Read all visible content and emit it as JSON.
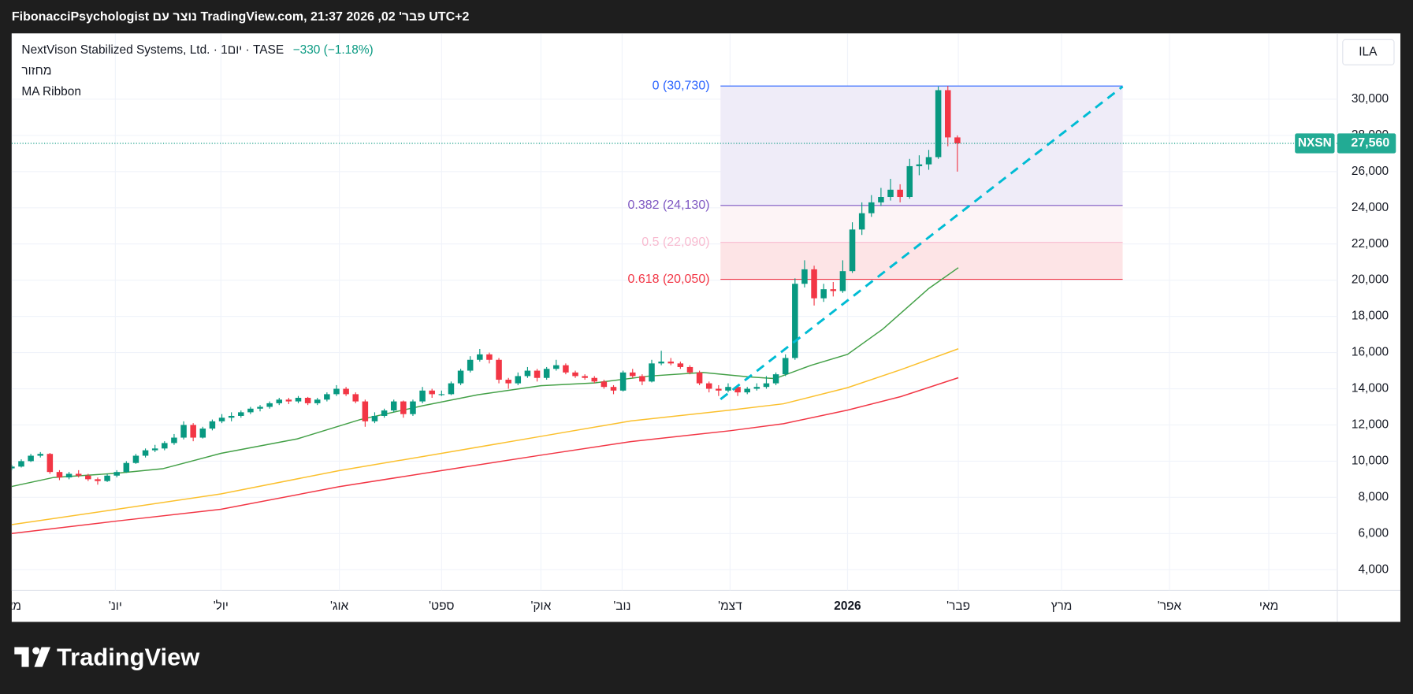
{
  "chart_data": {
    "type": "candlestick",
    "watermark": "FibonacciPsychologist נוצר עם TradingView.com, פבר' 02, 2026 21:37 UTC+2",
    "title": "NextVison Stabilized Systems, Ltd. · 1יום · TASE",
    "change_label": "−330 (−1.18%)",
    "indicators": [
      "מחזור",
      "MA Ribbon"
    ],
    "currency": "ILA",
    "symbol": "NXSN",
    "last_price": 27560,
    "last_price_label": "27,560",
    "brand": "TradingView",
    "up_color": "#089981",
    "down_color": "#f23645",
    "grid": true,
    "xlim": [
      0,
      138.77
    ],
    "ylim": [
      2860,
      33640
    ],
    "yticks": [
      {
        "value": 4000,
        "label": "4,000"
      },
      {
        "value": 6000,
        "label": "6,000"
      },
      {
        "value": 8000,
        "label": "8,000"
      },
      {
        "value": 10000,
        "label": "10,000"
      },
      {
        "value": 12000,
        "label": "12,000"
      },
      {
        "value": 14000,
        "label": "14,000"
      },
      {
        "value": 16000,
        "label": "16,000"
      },
      {
        "value": 18000,
        "label": "18,000"
      },
      {
        "value": 20000,
        "label": "20,000"
      },
      {
        "value": 22000,
        "label": "22,000"
      },
      {
        "value": 24000,
        "label": "24,000"
      },
      {
        "value": 26000,
        "label": "26,000"
      },
      {
        "value": 28000,
        "label": "28,000"
      },
      {
        "value": 30000,
        "label": "30,000"
      }
    ],
    "xticks": [
      {
        "value": 0,
        "label": "מאי"
      },
      {
        "value": 10.85,
        "label": "יונ'"
      },
      {
        "value": 21.9,
        "label": "יול'"
      },
      {
        "value": 34.3,
        "label": "אוג'"
      },
      {
        "value": 45,
        "label": "ספט'"
      },
      {
        "value": 55.4,
        "label": "אוק'"
      },
      {
        "value": 63.9,
        "label": "נוב'"
      },
      {
        "value": 75.2,
        "label": "דצמ'"
      },
      {
        "value": 87.5,
        "label": "2026"
      },
      {
        "value": 99.1,
        "label": "פבר'"
      },
      {
        "value": 109.9,
        "label": "מרץ"
      },
      {
        "value": 121.2,
        "label": "אפר'"
      },
      {
        "value": 131.6,
        "label": "מאי"
      }
    ],
    "candles": {
      "open": [
        9600,
        9700,
        10000,
        10300,
        10400,
        9400,
        9100,
        9300,
        9200,
        9000,
        8900,
        9200,
        9400,
        9900,
        10300,
        10600,
        10700,
        11000,
        11300,
        12000,
        11300,
        11800,
        12200,
        12400,
        12500,
        12700,
        12900,
        13000,
        13200,
        13400,
        13300,
        13500,
        13200,
        13400,
        13700,
        14000,
        13700,
        13300,
        12200,
        12500,
        12800,
        13300,
        12600,
        13300,
        13900,
        13700,
        13700,
        14300,
        15000,
        15600,
        15900,
        15600,
        14500,
        14300,
        14700,
        15000,
        14600,
        15100,
        15300,
        14900,
        14700,
        14600,
        14400,
        14100,
        13900,
        14900,
        14700,
        14400,
        15400,
        15500,
        15400,
        15200,
        14900,
        14300,
        14000,
        13900,
        14100,
        13800,
        14000,
        14100,
        14300,
        14800,
        15700,
        19800,
        20600,
        19000,
        19500,
        19400,
        20500,
        22800,
        23700,
        24300,
        24600,
        25000,
        24600,
        26300,
        26400,
        26800,
        30500,
        27890
      ],
      "high": [
        9800,
        10100,
        10400,
        10500,
        10450,
        9500,
        9400,
        9500,
        9300,
        9100,
        9300,
        9500,
        10000,
        10400,
        10700,
        10900,
        11100,
        11500,
        12200,
        12100,
        11900,
        12300,
        12600,
        12700,
        12800,
        13000,
        13100,
        13300,
        13500,
        13500,
        13600,
        13550,
        13500,
        13800,
        14200,
        14100,
        13800,
        13400,
        12700,
        12900,
        13400,
        13350,
        13400,
        14100,
        14000,
        13900,
        14400,
        15100,
        15800,
        16200,
        16000,
        15700,
        14600,
        14900,
        15200,
        15100,
        15200,
        15600,
        15400,
        15000,
        14800,
        14700,
        14500,
        14200,
        15000,
        15100,
        14800,
        15600,
        16100,
        15700,
        15500,
        15300,
        15000,
        14400,
        14200,
        14300,
        14200,
        14100,
        14300,
        14700,
        14900,
        15900,
        20100,
        21100,
        20800,
        19800,
        19900,
        21100,
        23200,
        24300,
        24700,
        25100,
        25600,
        25300,
        26700,
        26900,
        27200,
        30700,
        30730,
        28000
      ],
      "low": [
        9500,
        9650,
        9950,
        10200,
        9300,
        8950,
        9000,
        9100,
        8900,
        8700,
        8850,
        9100,
        9350,
        9850,
        10200,
        10500,
        10600,
        10900,
        11200,
        11100,
        11250,
        11700,
        12100,
        12200,
        12400,
        12600,
        12750,
        12900,
        13100,
        13150,
        13200,
        13100,
        13100,
        13300,
        13600,
        13600,
        13200,
        11900,
        12100,
        12400,
        12700,
        12400,
        12500,
        13200,
        13500,
        13600,
        13650,
        14200,
        14900,
        15500,
        15400,
        14300,
        14000,
        14200,
        14600,
        14400,
        14500,
        15000,
        14800,
        14600,
        14500,
        14300,
        14000,
        13700,
        13850,
        14600,
        14200,
        14350,
        15300,
        15300,
        15100,
        14800,
        14200,
        13800,
        13600,
        13800,
        13600,
        13700,
        13900,
        14000,
        14200,
        14700,
        15600,
        19600,
        18600,
        18800,
        19100,
        19300,
        20400,
        22500,
        23500,
        24100,
        24400,
        24300,
        24500,
        25800,
        26100,
        26700,
        27400,
        26000
      ],
      "close": [
        9700,
        10000,
        10300,
        10400,
        9400,
        9100,
        9300,
        9200,
        9000,
        8900,
        9200,
        9400,
        9900,
        10300,
        10600,
        10700,
        11000,
        11300,
        12000,
        11300,
        11800,
        12200,
        12400,
        12500,
        12700,
        12900,
        13000,
        13200,
        13400,
        13300,
        13500,
        13200,
        13400,
        13700,
        14000,
        13700,
        13300,
        12200,
        12500,
        12800,
        13300,
        12600,
        13300,
        13900,
        13700,
        13700,
        14300,
        15000,
        15600,
        15900,
        15600,
        14500,
        14300,
        14700,
        15000,
        14600,
        15100,
        15300,
        14900,
        14700,
        14600,
        14400,
        14100,
        13900,
        14900,
        14700,
        14400,
        15400,
        15500,
        15400,
        15200,
        14900,
        14300,
        14000,
        13900,
        14100,
        13800,
        14000,
        14100,
        14300,
        14800,
        15700,
        19800,
        20600,
        19000,
        19500,
        19400,
        20500,
        22800,
        23700,
        24300,
        24600,
        25000,
        24600,
        26300,
        26400,
        26800,
        30500,
        27890,
        27560
      ]
    },
    "ma_ribbon": {
      "lines": [
        {
          "color": "#43a047",
          "x": [
            0,
            4.4,
            11,
            15.8,
            21.9,
            29.9,
            36.5,
            43.1,
            48.8,
            55.4,
            61,
            66.7,
            72.4,
            77.1,
            79.9,
            83.7,
            87.5,
            91.2,
            96,
            99.1
          ],
          "values": [
            8600,
            9100,
            9330,
            9580,
            10430,
            11230,
            12300,
            13070,
            13670,
            14170,
            14320,
            14700,
            14900,
            14660,
            14560,
            15300,
            15900,
            17300,
            19540,
            20690
          ]
        },
        {
          "color": "#fbc02d",
          "x": [
            0,
            11,
            21.9,
            34.3,
            45,
            55.4,
            64.8,
            75.2,
            80.8,
            87.5,
            93.1,
            99.1
          ],
          "values": [
            6490,
            7340,
            8190,
            9480,
            10430,
            11370,
            12220,
            12820,
            13170,
            14060,
            15060,
            16210
          ]
        },
        {
          "color": "#f23645",
          "x": [
            0,
            11,
            21.9,
            34.3,
            45,
            55.4,
            64.8,
            75.2,
            80.8,
            87.5,
            93.1,
            99.1
          ],
          "values": [
            6000,
            6690,
            7340,
            8590,
            9480,
            10330,
            11080,
            11680,
            12070,
            12820,
            13570,
            14610
          ]
        }
      ]
    },
    "fib": {
      "x_range": [
        74.2,
        116.3
      ],
      "levels": [
        {
          "level": 0,
          "price": 30730,
          "label": "0 (30,730)",
          "color": "#2962ff"
        },
        {
          "level": 0.382,
          "price": 24130,
          "label": "0.382 (24,130)",
          "color": "#7e57c2",
          "fill": "#efecf8"
        },
        {
          "level": 0.5,
          "price": 22090,
          "label": "0.5 (22,090)",
          "color": "#f8bbd0",
          "fill": "#fdf4f6"
        },
        {
          "level": 0.618,
          "price": 20050,
          "label": "0.618 (20,050)",
          "color": "#f23645",
          "fill": "#fde4e6"
        }
      ]
    },
    "trend_line": {
      "x": [
        74.2,
        116.3
      ],
      "values": [
        13420,
        30700
      ],
      "color": "#00bcd4"
    }
  }
}
